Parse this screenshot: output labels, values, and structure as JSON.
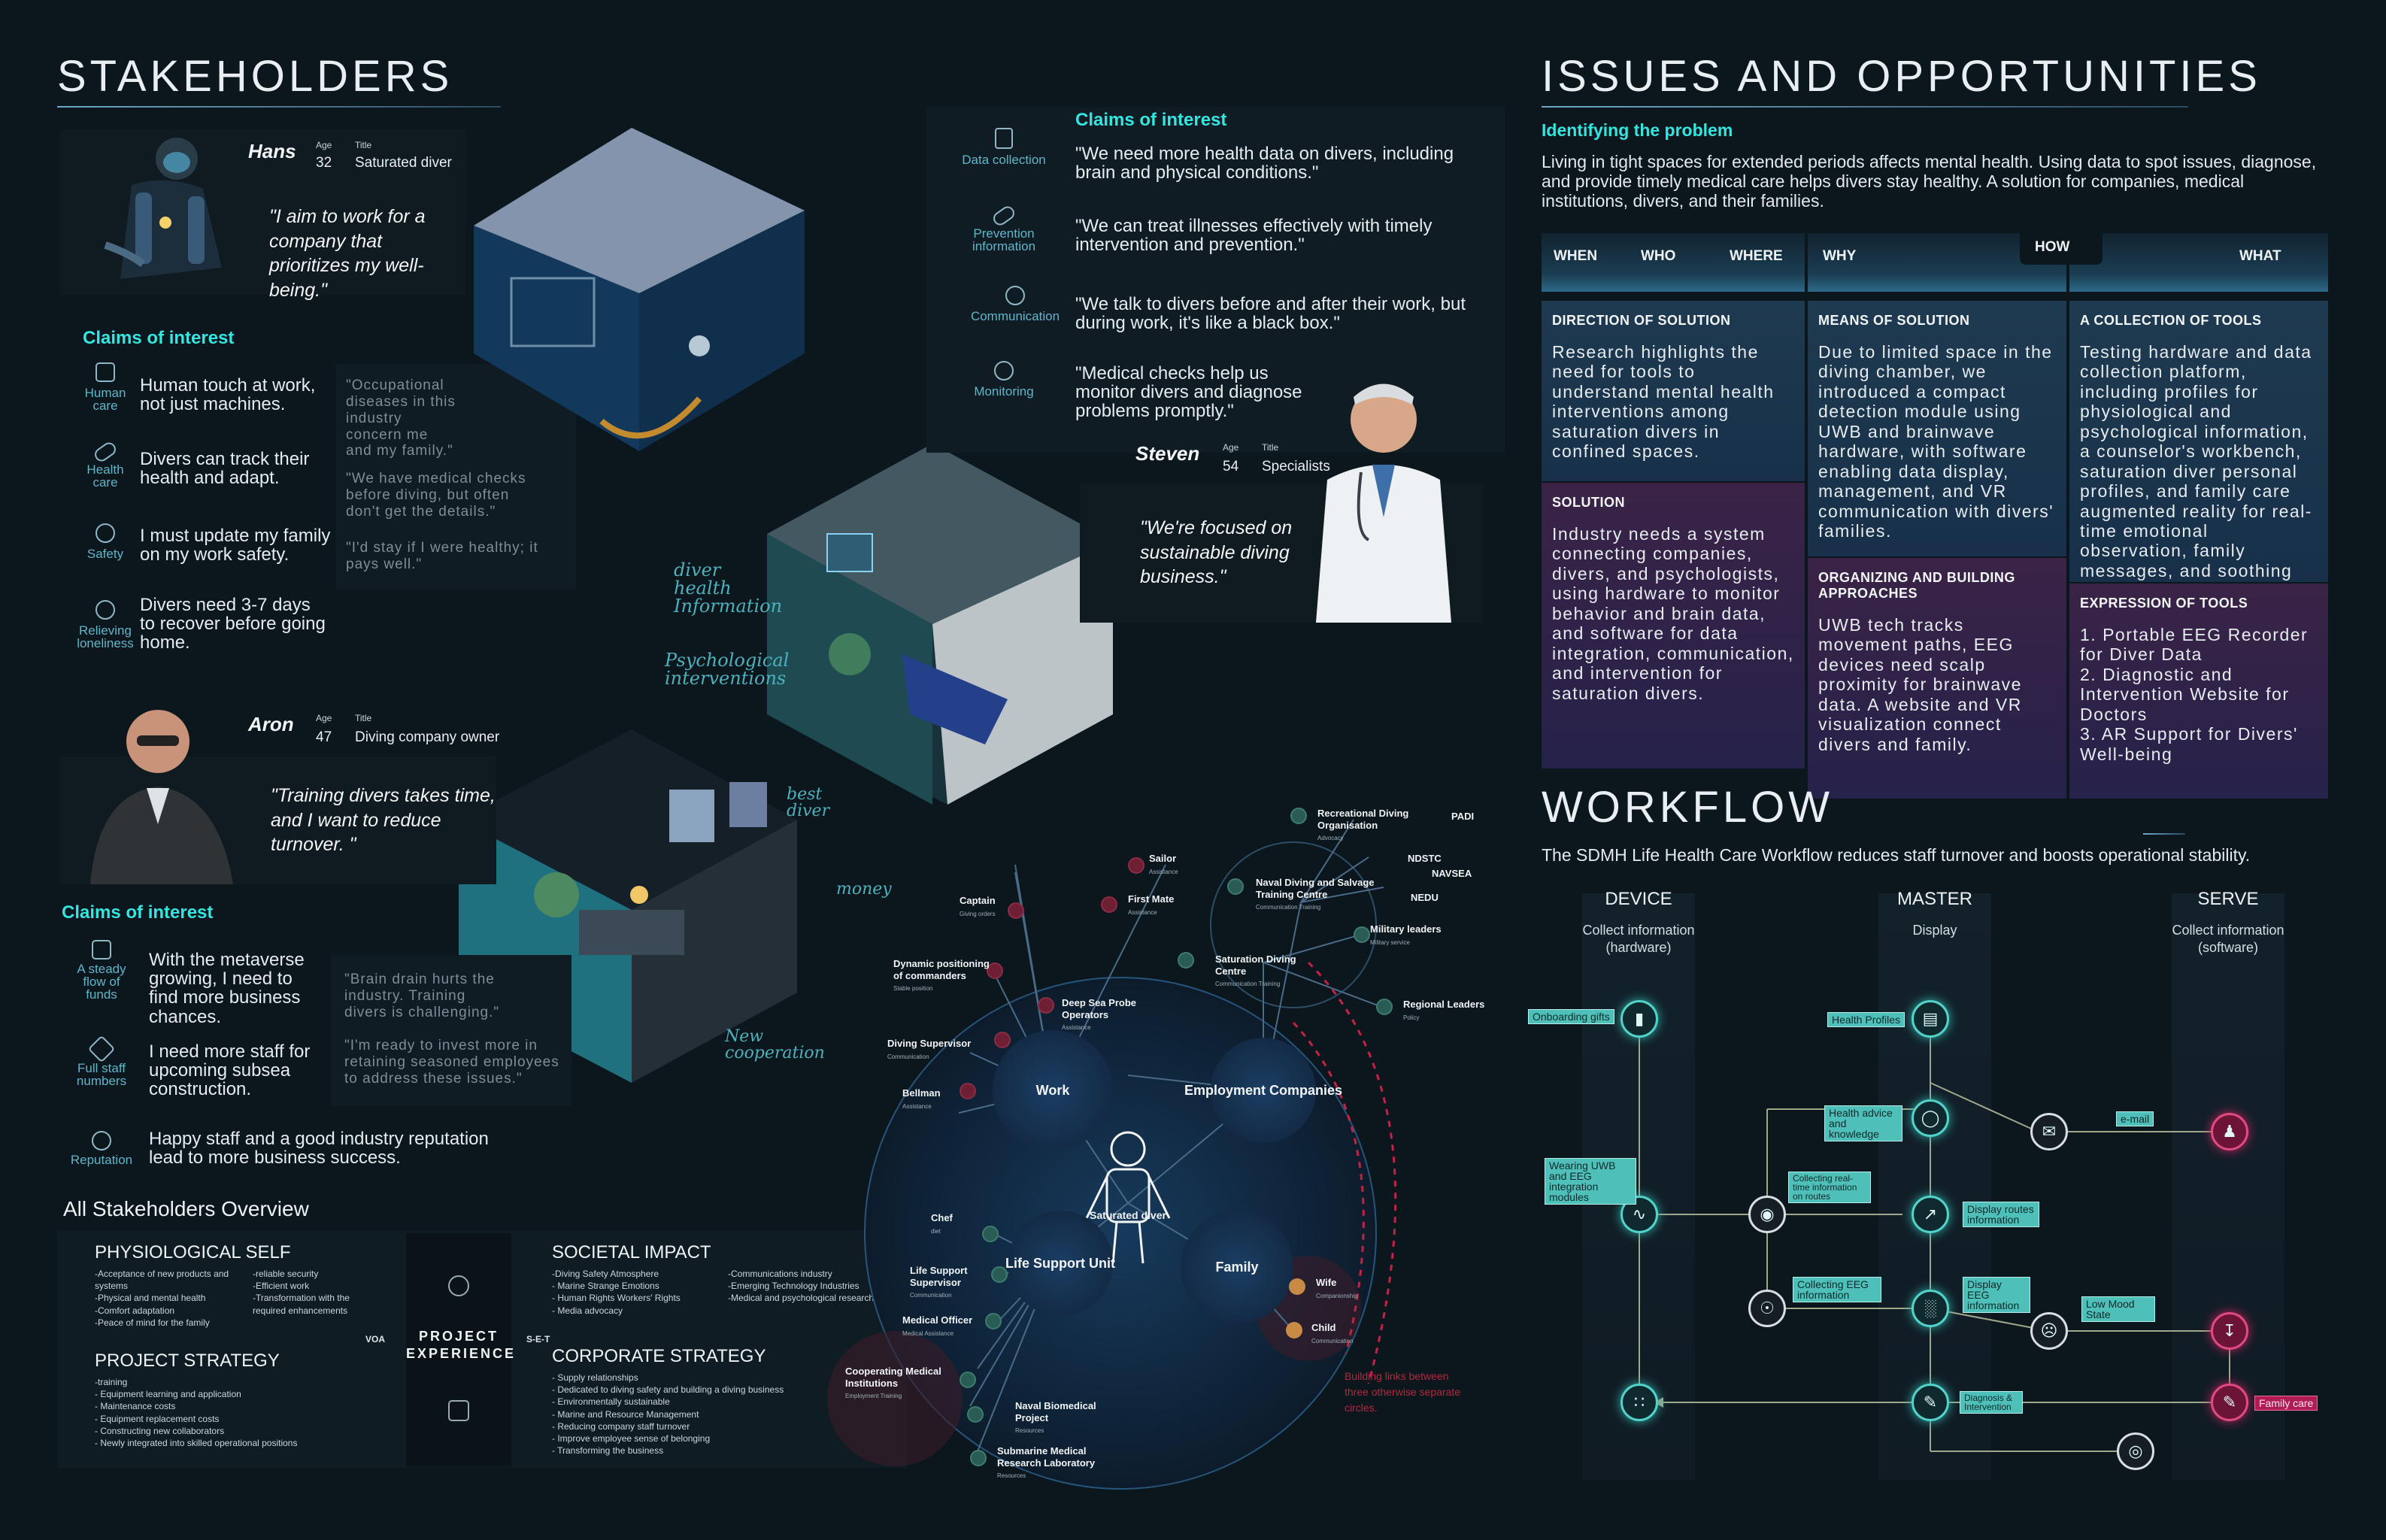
{
  "stakeholders": {
    "title": "STAKEHOLDERS",
    "hans": {
      "name": "Hans",
      "age_label": "Age",
      "age": "32",
      "title_label": "Title",
      "title": "Saturated diver",
      "quote": "\"I aim to work for a company that prioritizes my well-being.\""
    },
    "hans_claims": {
      "heading": "Claims of interest",
      "items": [
        {
          "icon": "Human care",
          "text": "Human touch at work, not just machines."
        },
        {
          "icon": "Health care",
          "text": "Divers can track their health and adapt."
        },
        {
          "icon": "Safety",
          "text": "I must update my family on my work safety."
        },
        {
          "icon": "Relieving loneliness",
          "text": "Divers need 3-7 days to recover before going home."
        }
      ],
      "quotes": [
        "\"Occupational diseases in this industry concern me and my family.\"",
        "\"We have medical checks before diving, but often don't get the details.\"",
        "\"I'd stay if I were healthy; it pays well.\""
      ]
    },
    "aron": {
      "name": "Aron",
      "age_label": "Age",
      "age": "47",
      "title_label": "Title",
      "title": "Diving company owner",
      "quote": "\"Training divers takes time, and I want to reduce turnover. \""
    },
    "aron_claims": {
      "heading": "Claims of interest",
      "items": [
        {
          "icon": "A steady flow of funds",
          "text": "With the metaverse growing, I need to find more business chances."
        },
        {
          "icon": "Full staff numbers",
          "text": "I need more staff for upcoming subsea construction."
        },
        {
          "icon": "Reputation",
          "text": "Happy staff and a good industry reputation lead to more business success."
        }
      ],
      "quotes": [
        "\"Brain drain hurts the industry. Training divers is challenging.\"",
        "\"I'm ready to invest more in retaining seasoned employees to address these issues.\""
      ]
    },
    "steven": {
      "name": "Steven",
      "age_label": "Age",
      "age": "54",
      "title_label": "Title",
      "title": "Specialists",
      "quote": "\"We're focused on sustainable diving business.\""
    },
    "steven_claims": {
      "heading": "Claims of interest",
      "items": [
        {
          "icon": "Data collection",
          "text": "\"We need more health data on divers, including brain and physical conditions.\""
        },
        {
          "icon": "Prevention information",
          "text": "\"We can treat illnesses effectively with timely intervention and prevention.\""
        },
        {
          "icon": "Communication",
          "text": "\"We talk to divers before and after their work, but during work, it's like a black box.\""
        },
        {
          "icon": "Monitoring",
          "text": "\"Medical checks help us monitor divers and diagnose problems promptly.\""
        }
      ]
    },
    "annotations": [
      "diver health Information",
      "Psychological interventions",
      "best diver",
      "money",
      "New cooperation"
    ]
  },
  "overview": {
    "title": "All Stakeholders Overview",
    "center": "PROJECT EXPERIENCE",
    "left_tag": "VOA",
    "right_tag": "S-E-T",
    "quadrants": [
      {
        "title": "PHYSIOLOGICAL SELF",
        "col1": [
          "-Acceptance of new products and systems",
          "-Physical and mental health",
          "-Comfort adaptation",
          "-Peace of mind for the family"
        ],
        "col2": [
          "-reliable security",
          "-Efficient work",
          "-Transformation with the required enhancements"
        ]
      },
      {
        "title": "SOCIETAL IMPACT",
        "col1": [
          "-Diving Safety Atmosphere",
          "- Marine Strange Emotions",
          "- Human Rights Workers' Rights",
          "- Media advocacy"
        ],
        "col2": [
          "-Communications industry",
          "-Emerging Technology Industries",
          "-Medical and psychological research"
        ]
      },
      {
        "title": "PROJECT STRATEGY",
        "col1": [
          "-training",
          "- Equipment learning and application",
          "- Maintenance costs",
          "- Equipment replacement costs",
          "- Constructing new collaborators",
          "- Newly integrated into skilled operational positions"
        ],
        "col2": []
      },
      {
        "title": "CORPORATE STRATEGY",
        "col1": [
          "- Supply relationships",
          "- Dedicated to diving safety and building a diving business",
          "- Environmentally sustainable",
          "- Marine and Resource Management",
          "- Reducing company staff turnover",
          "- Improve employee sense of belonging",
          "- Transforming the business"
        ],
        "col2": []
      }
    ]
  },
  "ecosystem": {
    "center": "Saturated diver",
    "bubbles": [
      "Work",
      "Employment Companies",
      "Life Support Unit",
      "Family"
    ],
    "work_nodes": [
      {
        "name": "Sailor",
        "sub": "Assistance"
      },
      {
        "name": "Captain",
        "sub": "Giving orders"
      },
      {
        "name": "First Mate",
        "sub": "Assistance"
      },
      {
        "name": "Dynamic positioning of commanders",
        "sub": "Stable position"
      },
      {
        "name": "Deep Sea Probe Operators",
        "sub": "Assistance"
      },
      {
        "name": "Diving Supervisor",
        "sub": "Communication"
      },
      {
        "name": "Bellman",
        "sub": "Assistance"
      }
    ],
    "company_nodes": [
      {
        "name": "Recreational Diving Organisation",
        "sub": "Advocacy"
      },
      {
        "name": "PADI",
        "sub": ""
      },
      {
        "name": "NDSTC",
        "sub": ""
      },
      {
        "name": "NAVSEA",
        "sub": ""
      },
      {
        "name": "NEDU",
        "sub": ""
      },
      {
        "name": "Naval Diving and Salvage Training Centre",
        "sub": "Communication Training"
      },
      {
        "name": "Military leaders",
        "sub": "Military service"
      },
      {
        "name": "Saturation Diving Centre",
        "sub": "Communication Training"
      },
      {
        "name": "Regional Leaders",
        "sub": "Policy"
      }
    ],
    "life_nodes": [
      {
        "name": "Chef",
        "sub": "diet"
      },
      {
        "name": "Life Support Supervisor",
        "sub": "Communication"
      },
      {
        "name": "Medical Officer",
        "sub": "Medical Assistance"
      },
      {
        "name": "Cooperating Medical Institutions",
        "sub": "Employment Training"
      },
      {
        "name": "Naval Biomedical Project",
        "sub": "Resources"
      },
      {
        "name": "Submarine Medical Research Laboratory",
        "sub": "Resources"
      }
    ],
    "family_nodes": [
      {
        "name": "Wife",
        "sub": "Companionship"
      },
      {
        "name": "Child",
        "sub": "Communication"
      }
    ],
    "note": "Building links between three otherwise separate circles."
  },
  "issues": {
    "title": "ISSUES AND OPPORTUNITIES",
    "sub": "Identifying the problem",
    "intro": "Living in tight spaces for extended periods affects mental health. Using data to spot issues, diagnose, and provide timely medical care helps divers stay healthy. A solution for companies, medical institutions, divers, and their families.",
    "headers": [
      "WHEN",
      "WHO",
      "WHERE",
      "WHY",
      "HOW",
      "WHAT"
    ],
    "cells": [
      {
        "title": "DIRECTION OF SOLUTION",
        "body": "Research highlights the need for tools to understand mental health interventions among saturation divers in confined spaces."
      },
      {
        "title": "MEANS OF SOLUTION",
        "body": "Due to limited space in the diving chamber, we introduced a compact detection module using UWB and brainwave hardware, with software enabling data display, management, and VR communication with divers' families."
      },
      {
        "title": "A COLLECTION OF TOOLS",
        "body": "Testing hardware and data collection platform, including profiles for physiological and psychological information, a counselor's workbench, saturation diver personal profiles, and family care augmented reality for real-time emotional observation, family messages, and soothing music."
      },
      {
        "title": "SOLUTION",
        "body": "Industry needs a system connecting companies, divers, and psychologists, using hardware to monitor behavior and brain data, and software for data integration, communication, and intervention for saturation divers."
      },
      {
        "title": "ORGANIZING AND BUILDING APPROACHES",
        "body": "UWB tech tracks movement paths, EEG devices need scalp proximity for brainwave data. A website and VR visualization connect divers and family."
      },
      {
        "title": "EXPRESSION OF TOOLS",
        "body": "1. Portable EEG Recorder for Diver Data\n2. Diagnostic and Intervention Website for Doctors\n3. AR Support for Divers' Well-being"
      }
    ]
  },
  "workflow": {
    "title": "WORKFLOW",
    "sub": "The SDMH Life Health Care Workflow reduces staff turnover and boosts operational stability.",
    "columns": [
      {
        "title": "DEVICE",
        "sub": "Collect information (hardware)"
      },
      {
        "title": "MASTER",
        "sub": "Display"
      },
      {
        "title": "SERVE",
        "sub": "Collect information (software)"
      }
    ],
    "tags": [
      "Onboarding gifts",
      "Health Profiles",
      "Health advice and knowledge",
      "e-mail",
      "Wearing UWB and EEG integration modules",
      "Collecting real-time information on routes",
      "Display routes information",
      "Collecting EEG information",
      "Display EEG information",
      "Low Mood State",
      "Diagnosis & Intervention",
      "Family care"
    ]
  },
  "colors": {
    "accent": "#33e6e0",
    "node": "#53d2c9",
    "pink": "#b01d56",
    "bg": "#0c161d"
  }
}
